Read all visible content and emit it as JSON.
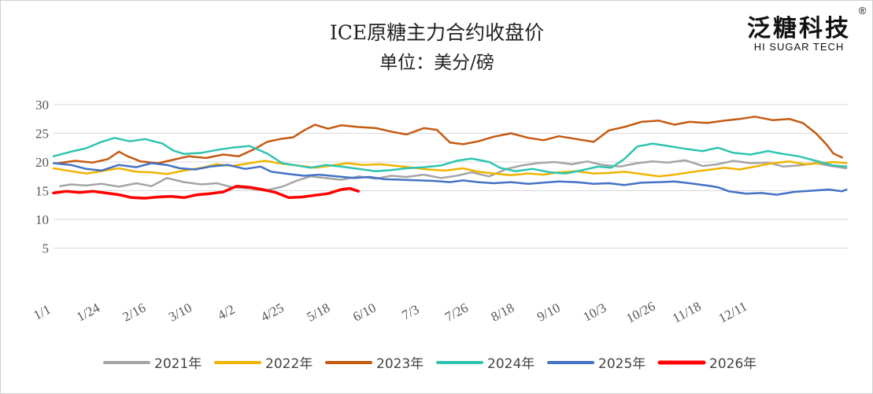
{
  "brand": {
    "name": "泛糖科技",
    "sub": "HI SUGAR TECH",
    "mark": "®"
  },
  "chart_data": {
    "type": "line",
    "title": "ICE原糖主力合约收盘价",
    "subtitle": "单位：美分/磅",
    "xlabel": "",
    "ylabel": "",
    "ylim": [
      0,
      30
    ],
    "yticks": [
      5,
      10,
      15,
      20,
      25,
      30
    ],
    "x_tick_labels": [
      "1/1",
      "1/24",
      "2/16",
      "3/10",
      "4/2",
      "4/25",
      "5/18",
      "6/10",
      "7/3",
      "7/26",
      "8/18",
      "9/10",
      "10/3",
      "10/26",
      "11/18",
      "12/11"
    ],
    "grid": true,
    "legend_position": "bottom",
    "x_domain_days": [
      0,
      365
    ],
    "series": [
      {
        "name": "2021年",
        "color": "#a5a5a5",
        "x": [
          3,
          8,
          15,
          22,
          30,
          38,
          45,
          52,
          60,
          68,
          75,
          82,
          90,
          97,
          105,
          112,
          118,
          125,
          132,
          140,
          148,
          155,
          162,
          170,
          178,
          185,
          192,
          200,
          208,
          215,
          222,
          230,
          238,
          245,
          252,
          260,
          268,
          275,
          282,
          290,
          298,
          305,
          312,
          320,
          328,
          335,
          342,
          350,
          357,
          364
        ],
        "y": [
          15.8,
          16.1,
          15.9,
          16.2,
          15.7,
          16.3,
          15.8,
          17.2,
          16.5,
          16.1,
          16.3,
          15.6,
          15.4,
          15.0,
          15.7,
          16.8,
          17.5,
          17.2,
          16.9,
          17.5,
          17.1,
          17.6,
          17.4,
          17.8,
          17.2,
          17.6,
          18.2,
          17.5,
          18.8,
          19.4,
          19.8,
          20.0,
          19.6,
          20.1,
          19.5,
          19.2,
          19.8,
          20.1,
          19.9,
          20.3,
          19.3,
          19.6,
          20.2,
          19.8,
          19.9,
          19.2,
          19.4,
          19.8,
          19.3,
          18.9
        ]
      },
      {
        "name": "2022年",
        "color": "#f0b400",
        "x": [
          0,
          8,
          15,
          22,
          30,
          38,
          45,
          52,
          60,
          68,
          75,
          82,
          90,
          97,
          105,
          112,
          120,
          128,
          135,
          142,
          150,
          158,
          165,
          172,
          180,
          188,
          195,
          202,
          210,
          218,
          225,
          232,
          240,
          248,
          255,
          262,
          270,
          278,
          285,
          292,
          300,
          308,
          315,
          322,
          330,
          338,
          345,
          352,
          358,
          364
        ],
        "y": [
          18.9,
          18.4,
          18.0,
          18.4,
          18.9,
          18.3,
          18.2,
          17.9,
          18.5,
          19.0,
          19.6,
          19.3,
          19.8,
          20.2,
          19.7,
          19.4,
          19.0,
          19.4,
          19.8,
          19.5,
          19.6,
          19.3,
          19.0,
          18.7,
          18.5,
          18.9,
          18.3,
          18.0,
          17.7,
          18.0,
          17.8,
          18.2,
          18.4,
          18.0,
          18.1,
          18.3,
          17.9,
          17.5,
          17.8,
          18.2,
          18.6,
          19.0,
          18.7,
          19.2,
          19.8,
          20.1,
          19.6,
          19.8,
          20.0,
          19.8
        ]
      },
      {
        "name": "2023年",
        "color": "#c55a11",
        "x": [
          2,
          10,
          18,
          25,
          30,
          34,
          40,
          48,
          55,
          62,
          70,
          78,
          85,
          92,
          98,
          104,
          110,
          115,
          120,
          126,
          132,
          140,
          148,
          155,
          162,
          170,
          176,
          182,
          188,
          195,
          202,
          210,
          218,
          225,
          232,
          240,
          248,
          255,
          262,
          270,
          278,
          285,
          292,
          300,
          308,
          315,
          322,
          330,
          338,
          344,
          350,
          355,
          358,
          362
        ],
        "y": [
          19.8,
          20.2,
          19.9,
          20.5,
          21.8,
          21.0,
          20.1,
          19.8,
          20.4,
          21.0,
          20.7,
          21.3,
          21.0,
          22.2,
          23.5,
          24.0,
          24.3,
          25.5,
          26.5,
          25.8,
          26.4,
          26.1,
          25.9,
          25.3,
          24.8,
          25.9,
          25.6,
          23.4,
          23.1,
          23.6,
          24.4,
          25.0,
          24.2,
          23.8,
          24.5,
          24.0,
          23.5,
          25.5,
          26.1,
          27.0,
          27.2,
          26.5,
          27.0,
          26.8,
          27.2,
          27.5,
          27.9,
          27.3,
          27.5,
          26.8,
          25.0,
          23.0,
          21.5,
          20.8
        ]
      },
      {
        "name": "2024年",
        "color": "#2ec4b0",
        "x": [
          0,
          8,
          15,
          22,
          28,
          35,
          42,
          50,
          55,
          60,
          68,
          75,
          82,
          90,
          98,
          105,
          110,
          118,
          125,
          132,
          140,
          148,
          155,
          162,
          170,
          178,
          185,
          192,
          200,
          205,
          212,
          220,
          228,
          235,
          242,
          250,
          256,
          262,
          268,
          275,
          282,
          290,
          298,
          305,
          312,
          320,
          328,
          335,
          342,
          350,
          358,
          364
        ],
        "y": [
          21.0,
          21.8,
          22.4,
          23.5,
          24.2,
          23.6,
          24.0,
          23.2,
          22.0,
          21.4,
          21.6,
          22.1,
          22.5,
          22.8,
          21.5,
          19.8,
          19.5,
          19.0,
          19.5,
          19.2,
          18.8,
          18.4,
          18.6,
          18.9,
          19.1,
          19.4,
          20.2,
          20.6,
          20.0,
          19.0,
          18.4,
          18.8,
          18.2,
          18.0,
          18.5,
          19.2,
          19.0,
          20.5,
          22.7,
          23.2,
          22.8,
          22.3,
          21.9,
          22.5,
          21.6,
          21.3,
          21.9,
          21.4,
          21.0,
          20.2,
          19.4,
          19.2
        ]
      },
      {
        "name": "2025年",
        "color": "#4472c4",
        "x": [
          0,
          8,
          15,
          22,
          30,
          38,
          45,
          52,
          58,
          65,
          72,
          80,
          88,
          95,
          100,
          108,
          115,
          122,
          130,
          138,
          145,
          152,
          160,
          168,
          175,
          182,
          188,
          195,
          202,
          210,
          218,
          225,
          232,
          240,
          248,
          255,
          262,
          270,
          278,
          285,
          292,
          300,
          305,
          310,
          318,
          325,
          332,
          340,
          348,
          356,
          362,
          364
        ],
        "y": [
          19.8,
          19.5,
          18.8,
          18.5,
          19.5,
          19.1,
          19.8,
          19.5,
          18.9,
          18.7,
          19.2,
          19.5,
          18.8,
          19.2,
          18.3,
          17.9,
          17.6,
          17.8,
          17.5,
          17.2,
          17.4,
          17.0,
          16.9,
          16.8,
          16.7,
          16.5,
          16.8,
          16.5,
          16.3,
          16.5,
          16.2,
          16.4,
          16.6,
          16.5,
          16.2,
          16.3,
          16.0,
          16.4,
          16.5,
          16.6,
          16.3,
          15.9,
          15.6,
          14.9,
          14.5,
          14.6,
          14.3,
          14.8,
          15.0,
          15.2,
          14.9,
          15.2
        ]
      },
      {
        "name": "2026年",
        "color": "#ff0000",
        "x": [
          0,
          6,
          12,
          18,
          24,
          30,
          36,
          42,
          48,
          54,
          60,
          66,
          72,
          78,
          84,
          90,
          96,
          102,
          108,
          114,
          120,
          126,
          132,
          136,
          140
        ],
        "y": [
          14.6,
          14.9,
          14.7,
          14.9,
          14.6,
          14.3,
          13.8,
          13.7,
          13.9,
          14.0,
          13.8,
          14.3,
          14.5,
          14.8,
          15.8,
          15.6,
          15.2,
          14.7,
          13.8,
          13.9,
          14.2,
          14.5,
          15.2,
          15.4,
          14.9
        ]
      }
    ]
  }
}
